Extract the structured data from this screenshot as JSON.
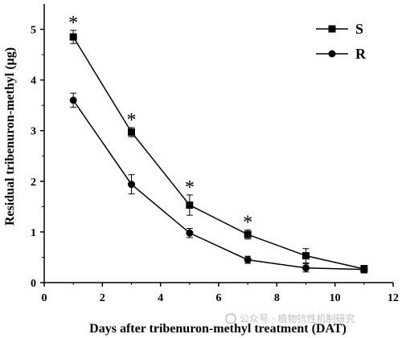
{
  "chart_data": {
    "type": "line",
    "xlabel": "Days after tribenuron-methyl treatment (DAT)",
    "ylabel": "Residual tribenuron-methyl (μg)",
    "xlim": [
      0,
      12
    ],
    "ylim": [
      0,
      5.5
    ],
    "x_ticks": [
      "0",
      "2",
      "4",
      "6",
      "8",
      "10",
      "12"
    ],
    "y_ticks": [
      "0",
      "1",
      "2",
      "3",
      "4",
      "5"
    ],
    "grid": false,
    "legend_position": "top-right",
    "series": [
      {
        "name": "S",
        "marker": "square",
        "x": [
          1,
          3,
          5,
          7,
          9,
          11
        ],
        "y": [
          4.85,
          2.97,
          1.53,
          0.95,
          0.53,
          0.27
        ],
        "error": [
          0.13,
          0.09,
          0.2,
          0.09,
          0.14,
          0.07
        ]
      },
      {
        "name": "R",
        "marker": "circle",
        "x": [
          1,
          3,
          5,
          7,
          9,
          11
        ],
        "y": [
          3.6,
          1.94,
          0.98,
          0.45,
          0.29,
          0.26
        ],
        "error": [
          0.14,
          0.19,
          0.09,
          0.07,
          0.08,
          0.07
        ]
      }
    ],
    "annotations": [
      {
        "text": "*",
        "x": 1
      },
      {
        "text": "*",
        "x": 3
      },
      {
        "text": "*",
        "x": 5
      },
      {
        "text": "*",
        "x": 7
      }
    ]
  },
  "watermark": {
    "text": "公众号 · 植物抗性机制研究"
  },
  "colors": {
    "line": "#000000",
    "background": "#ffffff",
    "watermark": "#b8b8b8"
  }
}
